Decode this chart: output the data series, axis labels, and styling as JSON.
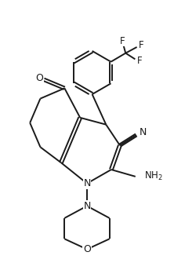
{
  "line_color": "#1a1a1a",
  "bg_color": "#ffffff",
  "linewidth": 1.4,
  "figsize": [
    2.22,
    3.35
  ],
  "dpi": 100,
  "xlim": [
    0,
    10
  ],
  "ylim": [
    0,
    15
  ]
}
